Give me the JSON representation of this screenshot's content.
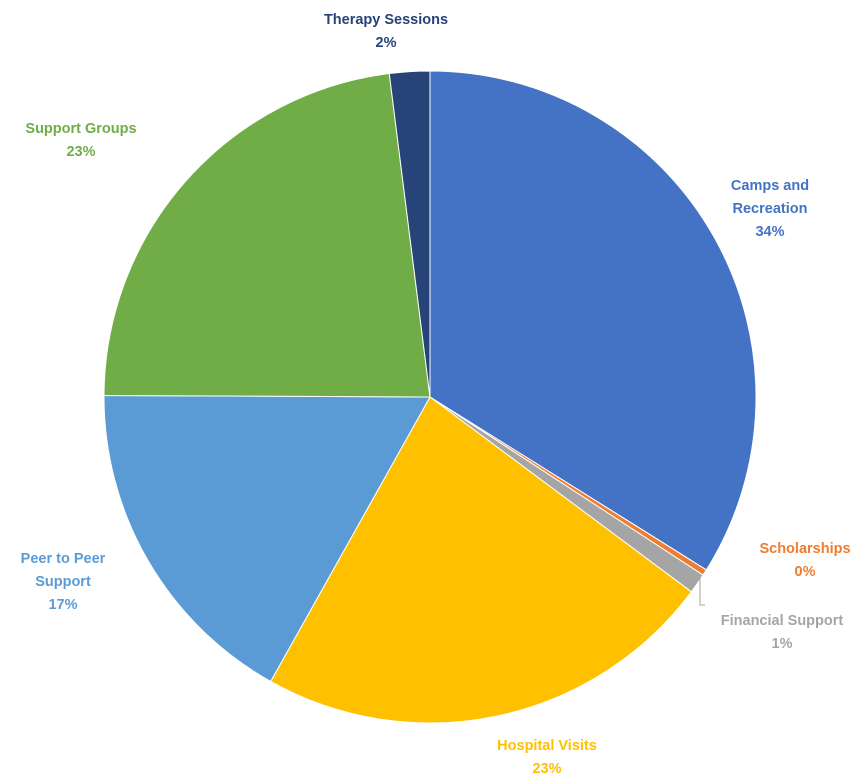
{
  "chart_data": {
    "type": "pie",
    "title": "",
    "start_angle_deg": 0,
    "direction": "clockwise",
    "slices": [
      {
        "label": "Camps and Recreation",
        "label_lines": [
          "Camps and",
          "Recreation"
        ],
        "value": 34,
        "value_label": "34%",
        "color": "#4472C4"
      },
      {
        "label": "Scholarships",
        "label_lines": [
          "Scholarships"
        ],
        "value": 0.3,
        "value_label": "0%",
        "color": "#ED7D31"
      },
      {
        "label": "Financial Support",
        "label_lines": [
          "Financial Support"
        ],
        "value": 1,
        "value_label": "1%",
        "color": "#A5A5A5"
      },
      {
        "label": "Hospital Visits",
        "label_lines": [
          "Hospital Visits"
        ],
        "value": 23,
        "value_label": "23%",
        "color": "#FFC000"
      },
      {
        "label": "Peer to Peer Support",
        "label_lines": [
          "Peer to Peer",
          "Support"
        ],
        "value": 17,
        "value_label": "17%",
        "color": "#5B9BD5"
      },
      {
        "label": "Support Groups",
        "label_lines": [
          "Support Groups"
        ],
        "value": 23,
        "value_label": "23%",
        "color": "#70AD47"
      },
      {
        "label": "Therapy Sessions",
        "label_lines": [
          "Therapy Sessions"
        ],
        "value": 2,
        "value_label": "2%",
        "color": "#264478"
      }
    ]
  }
}
